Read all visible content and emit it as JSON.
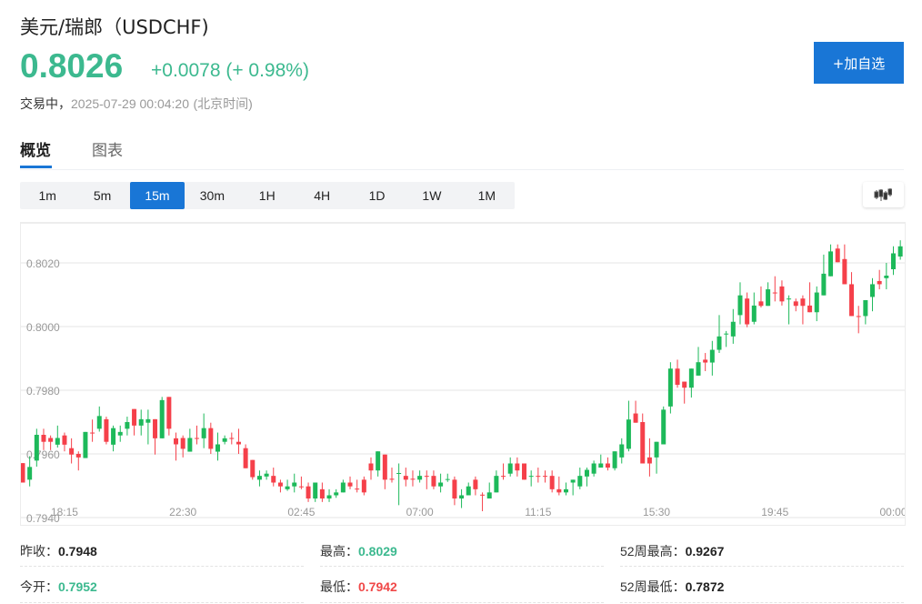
{
  "header": {
    "title": "美元/瑞郎（USDCHF)",
    "price": "0.8026",
    "change": "+0.0078 (+ 0.98%)",
    "status_label": "交易中，",
    "timestamp": "2025-07-29 00:04:20",
    "timezone": "(北京时间)",
    "add_button": "+加自选"
  },
  "tabs": [
    {
      "label": "概览",
      "active": true
    },
    {
      "label": "图表",
      "active": false
    }
  ],
  "timeframes": [
    {
      "label": "1m"
    },
    {
      "label": "5m"
    },
    {
      "label": "15m",
      "active": true
    },
    {
      "label": "30m"
    },
    {
      "label": "1H"
    },
    {
      "label": "4H"
    },
    {
      "label": "1D"
    },
    {
      "label": "1W"
    },
    {
      "label": "1M"
    }
  ],
  "chart_type_icon": "candlestick-icon",
  "stats": [
    {
      "label": "昨收：",
      "value": "0.7948",
      "color": "#222222"
    },
    {
      "label": "最高：",
      "value": "0.8029",
      "color": "#3cb98f"
    },
    {
      "label": "52周最高：",
      "value": "0.9267",
      "color": "#222222"
    },
    {
      "label": "今开：",
      "value": "0.7952",
      "color": "#3cb98f"
    },
    {
      "label": "最低：",
      "value": "0.7942",
      "color": "#f04848"
    },
    {
      "label": "52周最低：",
      "value": "0.7872",
      "color": "#222222"
    }
  ],
  "chart_data": {
    "type": "candlestick",
    "interval": "15m",
    "colors": {
      "up": "#1db95a",
      "down": "#f5404a"
    },
    "ylim": [
      0.794,
      0.803
    ],
    "y_ticks": [
      "0.8020",
      "0.8000",
      "0.7980",
      "0.7960",
      "0.7940"
    ],
    "x_ticks": [
      {
        "label": "18:15",
        "index": 6
      },
      {
        "label": "22:30",
        "index": 23
      },
      {
        "label": "02:45",
        "index": 40
      },
      {
        "label": "07:00",
        "index": 57
      },
      {
        "label": "11:15",
        "index": 74
      },
      {
        "label": "15:30",
        "index": 91
      },
      {
        "label": "19:45",
        "index": 108
      },
      {
        "label": "00:00",
        "index": 125
      }
    ],
    "grid": true,
    "ohlc": [
      [
        0.79571,
        0.79571,
        0.7951,
        0.7951
      ],
      [
        0.79519,
        0.79593,
        0.79498,
        0.79559
      ],
      [
        0.79579,
        0.79679,
        0.7956,
        0.7966
      ],
      [
        0.7966,
        0.79679,
        0.79612,
        0.79638
      ],
      [
        0.7965,
        0.79658,
        0.79612,
        0.79638
      ],
      [
        0.79629,
        0.79689,
        0.7962,
        0.7965
      ],
      [
        0.79658,
        0.79667,
        0.79608,
        0.79629
      ],
      [
        0.79618,
        0.79649,
        0.7957,
        0.79598
      ],
      [
        0.796,
        0.79608,
        0.79548,
        0.79589
      ],
      [
        0.79587,
        0.79669,
        0.79587,
        0.79669
      ],
      [
        0.79667,
        0.79708,
        0.79638,
        0.79666
      ],
      [
        0.79679,
        0.79749,
        0.7967,
        0.79719
      ],
      [
        0.79709,
        0.79717,
        0.7963,
        0.79638
      ],
      [
        0.79629,
        0.79689,
        0.79608,
        0.79681
      ],
      [
        0.79658,
        0.79689,
        0.79638,
        0.79669
      ],
      [
        0.79679,
        0.79717,
        0.79658,
        0.797
      ],
      [
        0.79741,
        0.79741,
        0.79658,
        0.79689
      ],
      [
        0.79689,
        0.79739,
        0.79658,
        0.79709
      ],
      [
        0.79698,
        0.79739,
        0.7963,
        0.79709
      ],
      [
        0.79709,
        0.79709,
        0.79598,
        0.79649
      ],
      [
        0.79649,
        0.79779,
        0.79649,
        0.79769
      ],
      [
        0.79779,
        0.79779,
        0.79658,
        0.79679
      ],
      [
        0.79649,
        0.79667,
        0.79579,
        0.7963
      ],
      [
        0.7965,
        0.79658,
        0.79589,
        0.79616
      ],
      [
        0.79607,
        0.79679,
        0.79607,
        0.7965
      ],
      [
        0.7965,
        0.79689,
        0.7963,
        0.79648
      ],
      [
        0.79649,
        0.79727,
        0.79618,
        0.79681
      ],
      [
        0.79681,
        0.79698,
        0.796,
        0.79616
      ],
      [
        0.79607,
        0.79667,
        0.79579,
        0.7963
      ],
      [
        0.79638,
        0.79658,
        0.7963,
        0.79649
      ],
      [
        0.7965,
        0.79667,
        0.7963,
        0.79649
      ],
      [
        0.79638,
        0.79679,
        0.796,
        0.7963
      ],
      [
        0.79618,
        0.7963,
        0.79555,
        0.79555
      ],
      [
        0.79581,
        0.79581,
        0.79519,
        0.79527
      ],
      [
        0.79519,
        0.79548,
        0.79498,
        0.79531
      ],
      [
        0.79529,
        0.79548,
        0.79519,
        0.79538
      ],
      [
        0.79531,
        0.79557,
        0.79498,
        0.7951
      ],
      [
        0.7951,
        0.79519,
        0.79479,
        0.79498
      ],
      [
        0.79489,
        0.79519,
        0.79484,
        0.79498
      ],
      [
        0.79498,
        0.79538,
        0.79479,
        0.7951
      ],
      [
        0.79498,
        0.79529,
        0.79489,
        0.79496
      ],
      [
        0.79498,
        0.7951,
        0.79449,
        0.7946
      ],
      [
        0.7946,
        0.7951,
        0.79449,
        0.7951
      ],
      [
        0.79489,
        0.7951,
        0.79449,
        0.7946
      ],
      [
        0.7946,
        0.79489,
        0.79449,
        0.7947
      ],
      [
        0.7947,
        0.79489,
        0.79462,
        0.79479
      ],
      [
        0.79479,
        0.79519,
        0.79479,
        0.7951
      ],
      [
        0.7951,
        0.79529,
        0.79489,
        0.79498
      ],
      [
        0.79491,
        0.79519,
        0.79479,
        0.79489
      ],
      [
        0.79519,
        0.79529,
        0.7947,
        0.79479
      ],
      [
        0.7957,
        0.79589,
        0.79519,
        0.79548
      ],
      [
        0.79548,
        0.79608,
        0.79529,
        0.79608
      ],
      [
        0.79598,
        0.79598,
        0.79489,
        0.79519
      ],
      [
        0.79522,
        0.79557,
        0.7951,
        0.79519
      ],
      [
        0.79538,
        0.7957,
        0.79439,
        0.7954
      ],
      [
        0.79531,
        0.79557,
        0.79498,
        0.79519
      ],
      [
        0.79522,
        0.79548,
        0.79498,
        0.7952
      ],
      [
        0.79519,
        0.79548,
        0.7951,
        0.79531
      ],
      [
        0.79531,
        0.79548,
        0.79489,
        0.79529
      ],
      [
        0.79531,
        0.79548,
        0.79489,
        0.79498
      ],
      [
        0.79498,
        0.79538,
        0.79479,
        0.7951
      ],
      [
        0.79519,
        0.79538,
        0.79512,
        0.79521
      ],
      [
        0.79519,
        0.79529,
        0.79439,
        0.7946
      ],
      [
        0.7946,
        0.79489,
        0.7943,
        0.7947
      ],
      [
        0.7947,
        0.7951,
        0.7947,
        0.79498
      ],
      [
        0.79519,
        0.79529,
        0.7947,
        0.79489
      ],
      [
        0.79472,
        0.79479,
        0.7942,
        0.7947
      ],
      [
        0.7946,
        0.7951,
        0.7946,
        0.79479
      ],
      [
        0.79479,
        0.79548,
        0.79479,
        0.79531
      ],
      [
        0.79531,
        0.7957,
        0.79519,
        0.79529
      ],
      [
        0.79538,
        0.79589,
        0.79529,
        0.7957
      ],
      [
        0.7957,
        0.79589,
        0.79529,
        0.79548
      ],
      [
        0.7957,
        0.7957,
        0.79519,
        0.79519
      ],
      [
        0.79529,
        0.79548,
        0.79498,
        0.79531
      ],
      [
        0.79531,
        0.79557,
        0.7951,
        0.79529
      ],
      [
        0.79531,
        0.79548,
        0.7951,
        0.79529
      ],
      [
        0.79531,
        0.79548,
        0.79479,
        0.79489
      ],
      [
        0.79489,
        0.79529,
        0.7947,
        0.79479
      ],
      [
        0.79479,
        0.7951,
        0.7947,
        0.79489
      ],
      [
        0.7951,
        0.79519,
        0.7947,
        0.79519
      ],
      [
        0.79498,
        0.79557,
        0.79489,
        0.79531
      ],
      [
        0.79529,
        0.79557,
        0.79498,
        0.7955
      ],
      [
        0.79538,
        0.79579,
        0.79529,
        0.7957
      ],
      [
        0.79557,
        0.79598,
        0.79557,
        0.7957
      ],
      [
        0.7957,
        0.79589,
        0.79548,
        0.79557
      ],
      [
        0.79555,
        0.79608,
        0.79548,
        0.79608
      ],
      [
        0.79589,
        0.79649,
        0.7957,
        0.7963
      ],
      [
        0.79616,
        0.79767,
        0.79608,
        0.79708
      ],
      [
        0.79727,
        0.79767,
        0.79698,
        0.79698
      ],
      [
        0.797,
        0.79727,
        0.7957,
        0.7957
      ],
      [
        0.79589,
        0.79649,
        0.79529,
        0.7957
      ],
      [
        0.79589,
        0.79638,
        0.79538,
        0.79638
      ],
      [
        0.7963,
        0.79749,
        0.7963,
        0.79739
      ],
      [
        0.79749,
        0.79888,
        0.79727,
        0.79868
      ],
      [
        0.79868,
        0.79896,
        0.79808,
        0.79817
      ],
      [
        0.79827,
        0.79827,
        0.79758,
        0.79808
      ],
      [
        0.79808,
        0.79868,
        0.79777,
        0.79868
      ],
      [
        0.79846,
        0.79936,
        0.79846,
        0.79888
      ],
      [
        0.79896,
        0.79917,
        0.7986,
        0.79887
      ],
      [
        0.79887,
        0.79955,
        0.79846,
        0.79927
      ],
      [
        0.79927,
        0.80036,
        0.79917,
        0.79969
      ],
      [
        0.79976,
        0.79986,
        0.79936,
        0.79978
      ],
      [
        0.79969,
        0.80055,
        0.79946,
        0.80015
      ],
      [
        0.80036,
        0.80139,
        0.80007,
        0.80098
      ],
      [
        0.80088,
        0.80107,
        0.79998,
        0.80007
      ],
      [
        0.80015,
        0.80107,
        0.80007,
        0.80066
      ],
      [
        0.80079,
        0.80126,
        0.8006,
        0.80065
      ],
      [
        0.80065,
        0.80139,
        0.80065,
        0.80117
      ],
      [
        0.80107,
        0.80158,
        0.80079,
        0.80105
      ],
      [
        0.80126,
        0.80145,
        0.80066,
        0.80079
      ],
      [
        0.80086,
        0.80098,
        0.80007,
        0.80088
      ],
      [
        0.80079,
        0.80088,
        0.80048,
        0.80065
      ],
      [
        0.80088,
        0.80098,
        0.80007,
        0.80065
      ],
      [
        0.80066,
        0.80139,
        0.80045,
        0.80045
      ],
      [
        0.80045,
        0.80126,
        0.80017,
        0.80107
      ],
      [
        0.80098,
        0.80226,
        0.80098,
        0.80166
      ],
      [
        0.80158,
        0.80258,
        0.80158,
        0.80236
      ],
      [
        0.80245,
        0.80258,
        0.80202,
        0.80202
      ],
      [
        0.80212,
        0.80258,
        0.80133,
        0.80133
      ],
      [
        0.80133,
        0.80171,
        0.80033,
        0.80033
      ],
      [
        0.80033,
        0.80065,
        0.79979,
        0.80031
      ],
      [
        0.80033,
        0.80083,
        0.80007,
        0.80083
      ],
      [
        0.80093,
        0.80152,
        0.80048,
        0.80133
      ],
      [
        0.80143,
        0.80178,
        0.80117,
        0.80133
      ],
      [
        0.80152,
        0.802,
        0.80117,
        0.8016
      ],
      [
        0.8018,
        0.80252,
        0.80162,
        0.8023
      ],
      [
        0.8022,
        0.80271,
        0.8021,
        0.80252
      ]
    ]
  }
}
